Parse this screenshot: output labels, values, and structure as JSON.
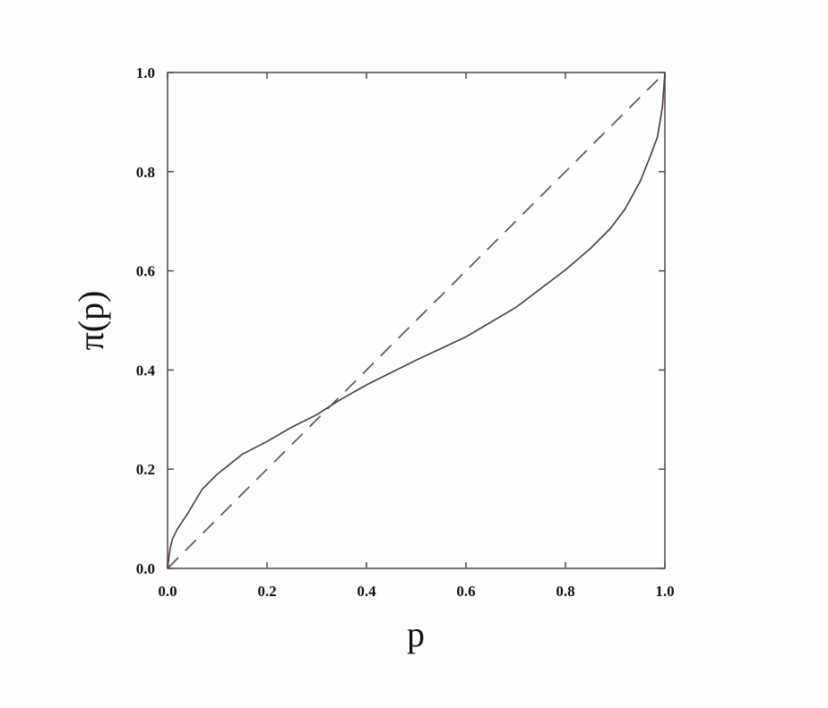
{
  "chart_data": {
    "type": "line",
    "title": "",
    "xlabel": "p",
    "ylabel": "π(p)",
    "xlim": [
      0,
      1
    ],
    "ylim": [
      0,
      1
    ],
    "grid": false,
    "xticks": [
      "0.0",
      "0.2",
      "0.4",
      "0.6",
      "0.8",
      "1.0"
    ],
    "yticks": [
      "0.0",
      "0.2",
      "0.4",
      "0.6",
      "0.8",
      "1.0"
    ],
    "series": [
      {
        "style": "solid",
        "color": "#4a3a3e",
        "x": [
          0,
          0.005,
          0.01,
          0.02,
          0.04,
          0.07,
          0.1,
          0.15,
          0.2,
          0.25,
          0.3,
          0.34,
          0.4,
          0.5,
          0.6,
          0.7,
          0.8,
          0.85,
          0.89,
          0.92,
          0.95,
          0.97,
          0.985,
          0.995,
          1.0
        ],
        "y": [
          0,
          0.04,
          0.06,
          0.08,
          0.11,
          0.16,
          0.19,
          0.23,
          0.256,
          0.285,
          0.31,
          0.336,
          0.37,
          0.42,
          0.467,
          0.526,
          0.602,
          0.645,
          0.685,
          0.725,
          0.78,
          0.83,
          0.87,
          0.93,
          1.0
        ]
      },
      {
        "style": "dashed",
        "color": "#5a4a4e",
        "x": [
          0,
          1
        ],
        "y": [
          0,
          1
        ]
      }
    ]
  }
}
